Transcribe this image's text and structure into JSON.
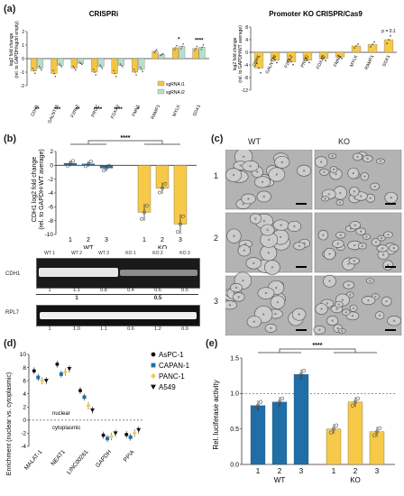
{
  "panels": {
    "a": {
      "label": "(a)"
    },
    "b": {
      "label": "(b)"
    },
    "c": {
      "label": "(c)"
    },
    "d": {
      "label": "(d)"
    },
    "e": {
      "label": "(e)"
    }
  },
  "colors": {
    "crispri_sg1": "#f5c542",
    "crispri_sg2": "#b7dfca",
    "yellow": "#f7c948",
    "blue": "#1f6ea8",
    "gray_ko": "#888888"
  },
  "chart_data": [
    {
      "id": "a-crispri",
      "type": "bar",
      "title": "CRISPRi",
      "ylabel": "log2 fold change",
      "ylabel2": "(rel. to GAPDH/sgctrl empty)",
      "ylim": [
        -2,
        2
      ],
      "yticks": [
        "2",
        "1",
        "0",
        "-1",
        "-2"
      ],
      "categories": [
        "CDH1",
        "GALNT16",
        "F2RL2",
        "PROC",
        "FOXA2",
        "FMN1",
        "RAMP1",
        "MYLK",
        "SGK1"
      ],
      "series": [
        {
          "name": "sgRNA i1",
          "values": [
            -0.9,
            -1.1,
            -0.7,
            -1.0,
            -1.1,
            -1.0,
            0.55,
            0.8,
            0.75
          ]
        },
        {
          "name": "sgRNA i2",
          "values": [
            -0.7,
            -0.5,
            -0.35,
            -0.6,
            -0.5,
            -0.8,
            0.3,
            0.9,
            0.85
          ]
        }
      ],
      "significance": [
        "**",
        "***",
        "**",
        "****",
        "****",
        "*",
        "",
        "*",
        "****"
      ]
    },
    {
      "id": "a-promoter",
      "type": "bar",
      "title": "Promoter KO CRISPR/Cas9",
      "ylabel": "log2 fold change",
      "ylabel2": "(rel. to GAPDH/WT average)",
      "ylim": [
        -12,
        8
      ],
      "yticks": [
        "8",
        "4",
        "0",
        "-4",
        "-8",
        "-12"
      ],
      "categories": [
        "CDH1",
        "GALNT16",
        "F2RL2",
        "PROC",
        "FOXA2",
        "FMN1",
        "MYLK",
        "RAMP1",
        "SGK1"
      ],
      "values": [
        -5.0,
        -2.5,
        -3.0,
        -2.5,
        -2.0,
        -1.5,
        2.0,
        2.5,
        4.0
      ],
      "annotation": "p = 0.1"
    },
    {
      "id": "b-bar",
      "type": "bar",
      "ylabel": "CDH1 log2 fold change",
      "ylabel2": "(rel. to GAPDH-WT average)",
      "ylim": [
        -10,
        2
      ],
      "yticks": [
        "2",
        "0",
        "-2",
        "-4",
        "-6",
        "-8",
        "-10"
      ],
      "categories": [
        "1",
        "2",
        "3",
        "1",
        "2",
        "3"
      ],
      "groups": [
        "WT",
        "KO"
      ],
      "values": [
        0.3,
        0.2,
        -0.4,
        -6.8,
        -3.3,
        -8.5
      ],
      "significance": "****"
    },
    {
      "id": "d-enrichment",
      "type": "scatter",
      "ylabel": "Enrichment (nuclear vs. cytoplasmic)",
      "ylim": [
        -4,
        10
      ],
      "yticks": [
        "10",
        "8",
        "6",
        "4",
        "2",
        "0",
        "-2",
        "-4"
      ],
      "categories": [
        "MALAT-1",
        "NEAT1",
        "LINC00261",
        "GAPDH",
        "PPIA"
      ],
      "series": [
        {
          "name": "AsPC-1",
          "values": [
            7.5,
            8.5,
            4.5,
            -2.3,
            -2.2
          ]
        },
        {
          "name": "CAPAN-1",
          "values": [
            6.5,
            7.0,
            3.5,
            -2.8,
            -2.6
          ]
        },
        {
          "name": "PANC-1",
          "values": [
            6.0,
            7.3,
            2.2,
            -2.5,
            -2.0
          ]
        },
        {
          "name": "A549",
          "values": [
            6.0,
            7.8,
            1.5,
            -2.0,
            -1.5
          ]
        }
      ],
      "annotations": [
        "nuclear",
        "cytoplasmic"
      ]
    },
    {
      "id": "e-luciferase",
      "type": "bar",
      "ylabel": "Rel. luciferase activity",
      "ylim": [
        0,
        1.5
      ],
      "yticks": [
        "1.5",
        "1.0",
        "0.5",
        "0.0"
      ],
      "categories": [
        "1",
        "2",
        "3",
        "1",
        "2",
        "3"
      ],
      "groups": [
        "WT",
        "KO"
      ],
      "values": [
        0.83,
        0.88,
        1.27,
        0.5,
        0.88,
        0.46
      ],
      "significance": "****"
    }
  ],
  "blot": {
    "top_labels": [
      "WT 1",
      "WT 2",
      "WT 3",
      "KO 1",
      "KO 2",
      "KO 3"
    ],
    "cdh1_label": "CDH1",
    "rpl7_label": "RPL7",
    "cdh1_values": [
      "1",
      "1.1",
      "0.8",
      "0.4",
      "0.6",
      "0.5"
    ],
    "cdh1_group": [
      "1",
      "0.5"
    ],
    "rpl7_values": [
      "1",
      "1.0",
      "1.1",
      "0.6",
      "1.2",
      "0.9"
    ]
  },
  "micro": {
    "wt": "WT",
    "ko": "KO",
    "rows": [
      "1",
      "2",
      "3"
    ]
  }
}
